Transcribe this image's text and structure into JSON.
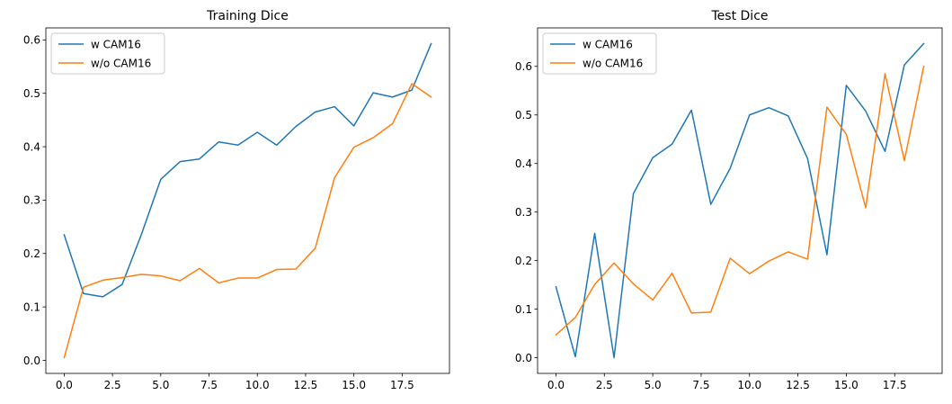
{
  "chart_data": [
    {
      "type": "line",
      "title": "Training Dice",
      "xlabel": "",
      "ylabel": "",
      "x": [
        0,
        1,
        2,
        3,
        4,
        5,
        6,
        7,
        8,
        9,
        10,
        11,
        12,
        13,
        14,
        15,
        16,
        17,
        18,
        19
      ],
      "xlim": [
        -0.95,
        19.95
      ],
      "ylim": [
        -0.0245,
        0.6225
      ],
      "xticks": [
        0.0,
        2.5,
        5.0,
        7.5,
        10.0,
        12.5,
        15.0,
        17.5
      ],
      "xtick_labels": [
        "0.0",
        "2.5",
        "5.0",
        "7.5",
        "10.0",
        "12.5",
        "15.0",
        "17.5"
      ],
      "yticks": [
        0.0,
        0.1,
        0.2,
        0.3,
        0.4,
        0.5,
        0.6
      ],
      "ytick_labels": [
        "0.0",
        "0.1",
        "0.2",
        "0.3",
        "0.4",
        "0.5",
        "0.6"
      ],
      "grid": false,
      "legend": "upper-left",
      "series": [
        {
          "name": "w CAM16",
          "color": "#1f77b4",
          "values": [
            0.235,
            0.125,
            0.119,
            0.142,
            0.236,
            0.339,
            0.372,
            0.377,
            0.409,
            0.403,
            0.427,
            0.403,
            0.438,
            0.465,
            0.475,
            0.439,
            0.501,
            0.493,
            0.506,
            0.593
          ]
        },
        {
          "name": "w/o CAM16",
          "color": "#ff7f0e",
          "values": [
            0.005,
            0.137,
            0.15,
            0.155,
            0.161,
            0.158,
            0.149,
            0.172,
            0.145,
            0.154,
            0.154,
            0.17,
            0.171,
            0.21,
            0.342,
            0.399,
            0.417,
            0.443,
            0.518,
            0.493
          ]
        }
      ]
    },
    {
      "type": "line",
      "title": "Test Dice",
      "xlabel": "",
      "ylabel": "",
      "x": [
        0,
        1,
        2,
        3,
        4,
        5,
        6,
        7,
        8,
        9,
        10,
        11,
        12,
        13,
        14,
        15,
        16,
        17,
        18,
        19
      ],
      "xlim": [
        -0.95,
        19.95
      ],
      "ylim": [
        -0.0323,
        0.6793
      ],
      "xticks": [
        0.0,
        2.5,
        5.0,
        7.5,
        10.0,
        12.5,
        15.0,
        17.5
      ],
      "xtick_labels": [
        "0.0",
        "2.5",
        "5.0",
        "7.5",
        "10.0",
        "12.5",
        "15.0",
        "17.5"
      ],
      "yticks": [
        0.0,
        0.1,
        0.2,
        0.3,
        0.4,
        0.5,
        0.6
      ],
      "ytick_labels": [
        "0.0",
        "0.1",
        "0.2",
        "0.3",
        "0.4",
        "0.5",
        "0.6"
      ],
      "grid": false,
      "legend": "upper-left",
      "series": [
        {
          "name": "w CAM16",
          "color": "#1f77b4",
          "values": [
            0.146,
            0.002,
            0.256,
            0.0,
            0.338,
            0.412,
            0.44,
            0.51,
            0.316,
            0.39,
            0.5,
            0.515,
            0.498,
            0.41,
            0.212,
            0.561,
            0.508,
            0.425,
            0.603,
            0.647
          ]
        },
        {
          "name": "w/o CAM16",
          "color": "#ff7f0e",
          "values": [
            0.047,
            0.083,
            0.151,
            0.195,
            0.152,
            0.119,
            0.174,
            0.092,
            0.094,
            0.205,
            0.173,
            0.199,
            0.218,
            0.203,
            0.516,
            0.46,
            0.309,
            0.585,
            0.406,
            0.6
          ]
        }
      ]
    }
  ]
}
